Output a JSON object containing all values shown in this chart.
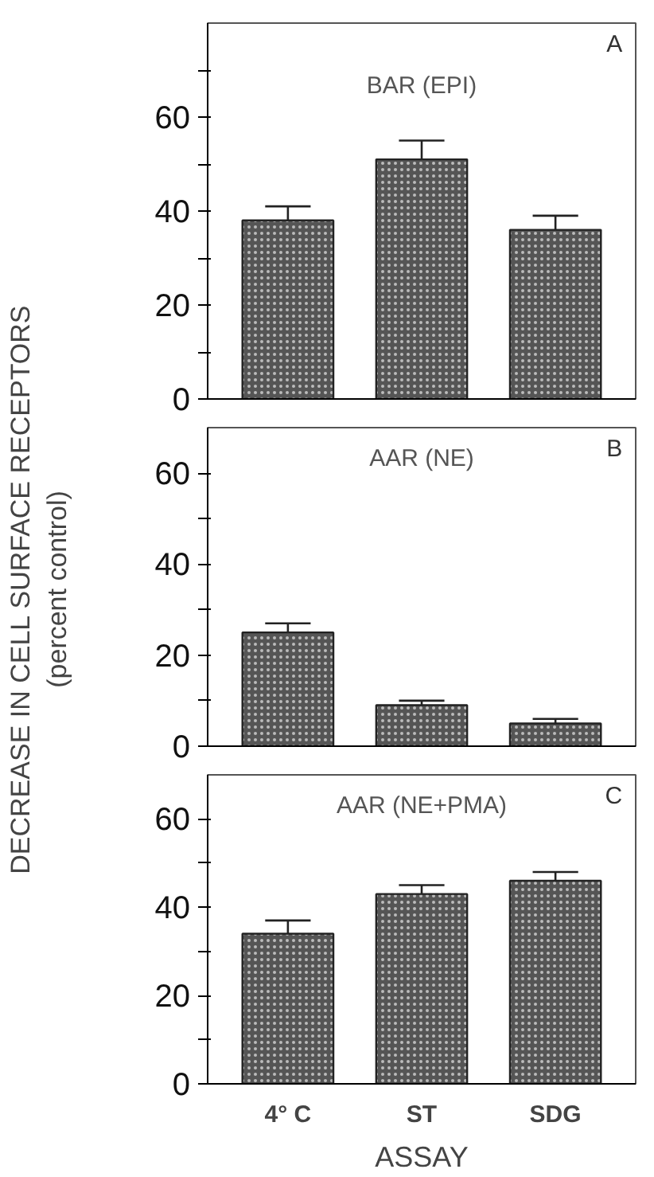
{
  "chart_data": [
    {
      "type": "bar",
      "title": "BAR (EPI)",
      "annotations": [
        "A"
      ],
      "values": [
        38,
        51,
        36
      ],
      "errors": [
        3,
        4,
        3
      ],
      "color": "#555555",
      "ylim": [
        0,
        80
      ],
      "yticks": [
        0,
        {
          "value": 10,
          "label": null
        },
        20,
        {
          "value": 30,
          "label": null
        },
        40,
        {
          "value": 50,
          "label": null
        },
        60,
        {
          "value": 70,
          "label": null
        }
      ],
      "tick_labels": "y",
      "grid": false
    },
    {
      "type": "bar",
      "title": "AAR (NE)",
      "annotations": [
        "B"
      ],
      "ylabel": "DECREASE IN CELL SURFACE RECEPTORS\n(percent control)",
      "values": [
        25,
        9,
        5
      ],
      "errors": [
        2,
        1,
        1
      ],
      "color": "#555555",
      "ylim": [
        0,
        70
      ],
      "yticks": [
        0,
        {
          "value": 10,
          "label": null
        },
        20,
        {
          "value": 30,
          "label": null
        },
        40,
        {
          "value": 50,
          "label": null
        },
        60
      ],
      "tick_labels": "y",
      "grid": false
    },
    {
      "type": "bar",
      "title": "AAR (NE+PMA)",
      "annotations": [
        "C"
      ],
      "xlabel": "ASSAY",
      "categories": [
        "4° C",
        "ST",
        "SDG"
      ],
      "values": [
        34,
        43,
        46
      ],
      "errors": [
        3,
        2,
        2
      ],
      "color": "#555555",
      "ylim": [
        0,
        70
      ],
      "yticks": [
        0,
        {
          "value": 10,
          "label": null
        },
        20,
        {
          "value": 30,
          "label": null
        },
        40,
        {
          "value": 50,
          "label": null
        },
        60
      ],
      "grid": false
    }
  ]
}
